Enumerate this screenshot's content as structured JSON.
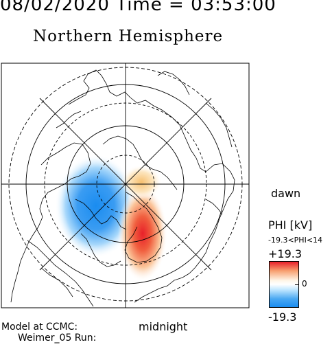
{
  "header": {
    "date_time_line": "08/02/2020  Time  =  03:53:00"
  },
  "title": "Northern Hemisphere",
  "labels": {
    "dawn": "dawn",
    "midnight": "midnight"
  },
  "footer": {
    "line1": "Model at CCMC:",
    "line2": "Weimer_05 Run:"
  },
  "colorbar": {
    "title": "PHI [kV]",
    "range_text": "-19.3<PHI<14",
    "max_label": "+19.3",
    "mid_label": "0",
    "min_label": "-19.3",
    "colors": {
      "positive": "#e8202a",
      "neutral": "#ffffff",
      "negative": "#1a8cf0"
    }
  },
  "map": {
    "projection": "polar-stereographic",
    "center": "north-pole",
    "latitude_circles_dashed_deg": [
      80,
      60,
      40
    ],
    "latitude_circles_solid_deg": [
      70,
      50
    ],
    "meridian_spokes": 8,
    "potential_cells": [
      {
        "sign": "negative",
        "peak_kv": -19.3,
        "side": "dusk"
      },
      {
        "sign": "positive",
        "peak_kv": 14,
        "side": "dawn"
      }
    ]
  }
}
